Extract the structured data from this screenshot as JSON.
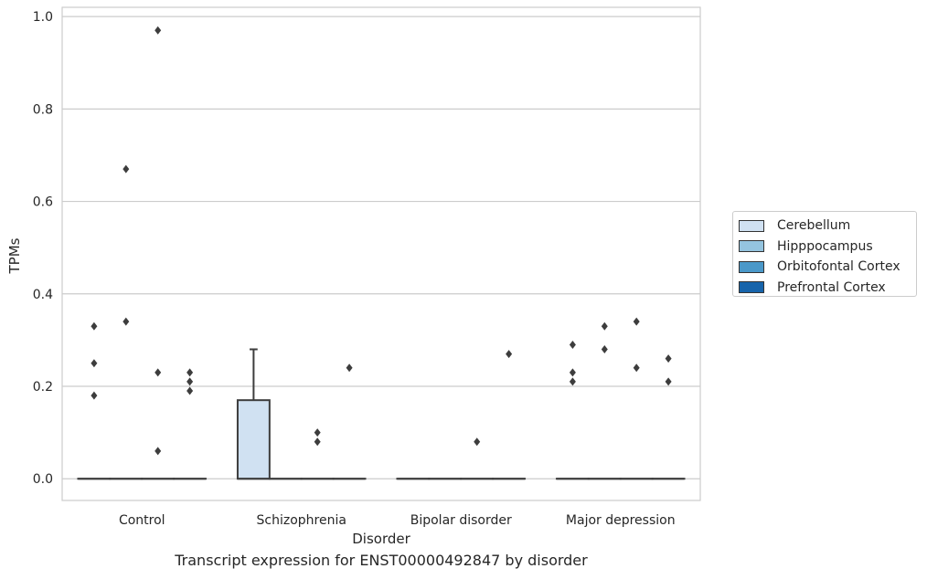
{
  "chart_data": {
    "type": "box",
    "title": "",
    "caption": "Transcript expression for ENST00000492847 by disorder",
    "xlabel": "Disorder",
    "ylabel": "TPMs",
    "ylim": [
      -0.047,
      1.02
    ],
    "yticks": [
      "0.0",
      "0.2",
      "0.4",
      "0.6",
      "0.8",
      "1.0"
    ],
    "grid": true,
    "legend_position": "right",
    "categories": [
      "Control",
      "Schizophrenia",
      "Bipolar disorder",
      "Major depression"
    ],
    "series": [
      {
        "name": "Cerebellum",
        "color": "#d0e1f2",
        "boxes": [
          {
            "q1": 0,
            "median": 0,
            "q3": 0,
            "whisker_low": 0,
            "whisker_high": 0,
            "outliers": [
              0.18,
              0.25,
              0.33
            ]
          },
          {
            "q1": 0,
            "median": 0,
            "q3": 0.17,
            "whisker_low": 0,
            "whisker_high": 0.28,
            "outliers": []
          },
          {
            "q1": 0,
            "median": 0,
            "q3": 0,
            "whisker_low": 0,
            "whisker_high": 0,
            "outliers": []
          },
          {
            "q1": 0,
            "median": 0,
            "q3": 0,
            "whisker_low": 0,
            "whisker_high": 0,
            "outliers": [
              0.21,
              0.23,
              0.29
            ]
          }
        ]
      },
      {
        "name": "Hipppocampus",
        "color": "#94c4df",
        "boxes": [
          {
            "q1": 0,
            "median": 0,
            "q3": 0,
            "whisker_low": 0,
            "whisker_high": 0,
            "outliers": [
              0.34,
              0.67
            ]
          },
          {
            "q1": 0,
            "median": 0,
            "q3": 0,
            "whisker_low": 0,
            "whisker_high": 0,
            "outliers": []
          },
          {
            "q1": 0,
            "median": 0,
            "q3": 0,
            "whisker_low": 0,
            "whisker_high": 0,
            "outliers": []
          },
          {
            "q1": 0,
            "median": 0,
            "q3": 0,
            "whisker_low": 0,
            "whisker_high": 0,
            "outliers": [
              0.28,
              0.33
            ]
          }
        ]
      },
      {
        "name": "Orbitofontal Cortex",
        "color": "#4a98c9",
        "boxes": [
          {
            "q1": 0,
            "median": 0,
            "q3": 0,
            "whisker_low": 0,
            "whisker_high": 0,
            "outliers": [
              0.06,
              0.23,
              0.97
            ]
          },
          {
            "q1": 0,
            "median": 0,
            "q3": 0,
            "whisker_low": 0,
            "whisker_high": 0,
            "outliers": [
              0.08,
              0.1
            ]
          },
          {
            "q1": 0,
            "median": 0,
            "q3": 0,
            "whisker_low": 0,
            "whisker_high": 0,
            "outliers": [
              0.08
            ]
          },
          {
            "q1": 0,
            "median": 0,
            "q3": 0,
            "whisker_low": 0,
            "whisker_high": 0,
            "outliers": [
              0.24,
              0.34
            ]
          }
        ]
      },
      {
        "name": "Prefrontal Cortex",
        "color": "#1764ab",
        "boxes": [
          {
            "q1": 0,
            "median": 0,
            "q3": 0,
            "whisker_low": 0,
            "whisker_high": 0,
            "outliers": [
              0.19,
              0.21,
              0.23
            ]
          },
          {
            "q1": 0,
            "median": 0,
            "q3": 0,
            "whisker_low": 0,
            "whisker_high": 0,
            "outliers": [
              0.24
            ]
          },
          {
            "q1": 0,
            "median": 0,
            "q3": 0,
            "whisker_low": 0,
            "whisker_high": 0,
            "outliers": [
              0.27
            ]
          },
          {
            "q1": 0,
            "median": 0,
            "q3": 0,
            "whisker_low": 0,
            "whisker_high": 0,
            "outliers": [
              0.21,
              0.26
            ]
          }
        ]
      }
    ]
  }
}
